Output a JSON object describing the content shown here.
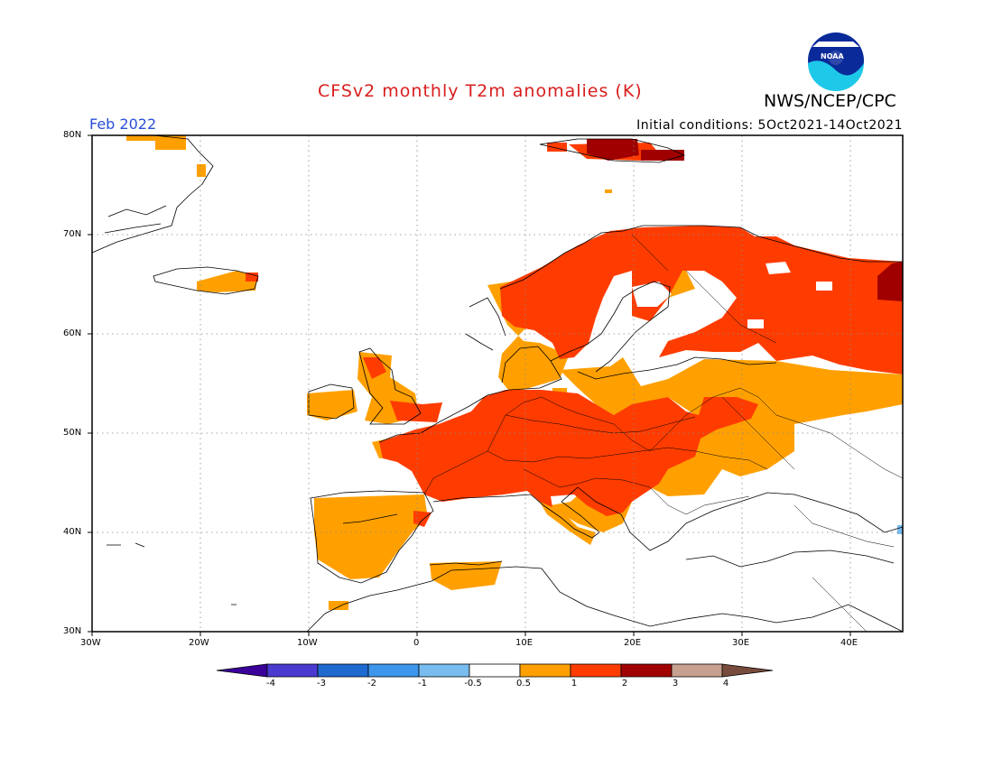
{
  "header": {
    "title": "CFSv2 monthly T2m anomalies (K)",
    "org": "NWS/NCEP/CPC",
    "month": "Feb 2022",
    "initial_conditions": "Initial conditions: 5Oct2021-14Oct2021",
    "logo_text": "NOAA"
  },
  "map": {
    "lat_ticks": [
      "80N",
      "70N",
      "60N",
      "50N",
      "40N",
      "30N"
    ],
    "lon_ticks": [
      "30W",
      "20W",
      "10W",
      "0",
      "10E",
      "20E",
      "30E",
      "40E"
    ]
  },
  "colorbar": {
    "labels": [
      "-4",
      "-3",
      "-2",
      "-1",
      "-0.5",
      "0.5",
      "1",
      "2",
      "3",
      "4"
    ],
    "colors": [
      "#3a009a",
      "#4a3ad0",
      "#1e6ad0",
      "#3c96ec",
      "#78bcf0",
      "#ffffff",
      "#ffa000",
      "#ff3c00",
      "#a00000",
      "#c8a090",
      "#784c3c"
    ]
  },
  "legend_colors": {
    "anomaly_0_5_to_1": "#ffa000",
    "anomaly_1_to_2": "#ff3c00",
    "anomaly_2_to_3": "#a00000",
    "anomaly_minus_0_5_to_minus_1": "#78bcf0"
  }
}
